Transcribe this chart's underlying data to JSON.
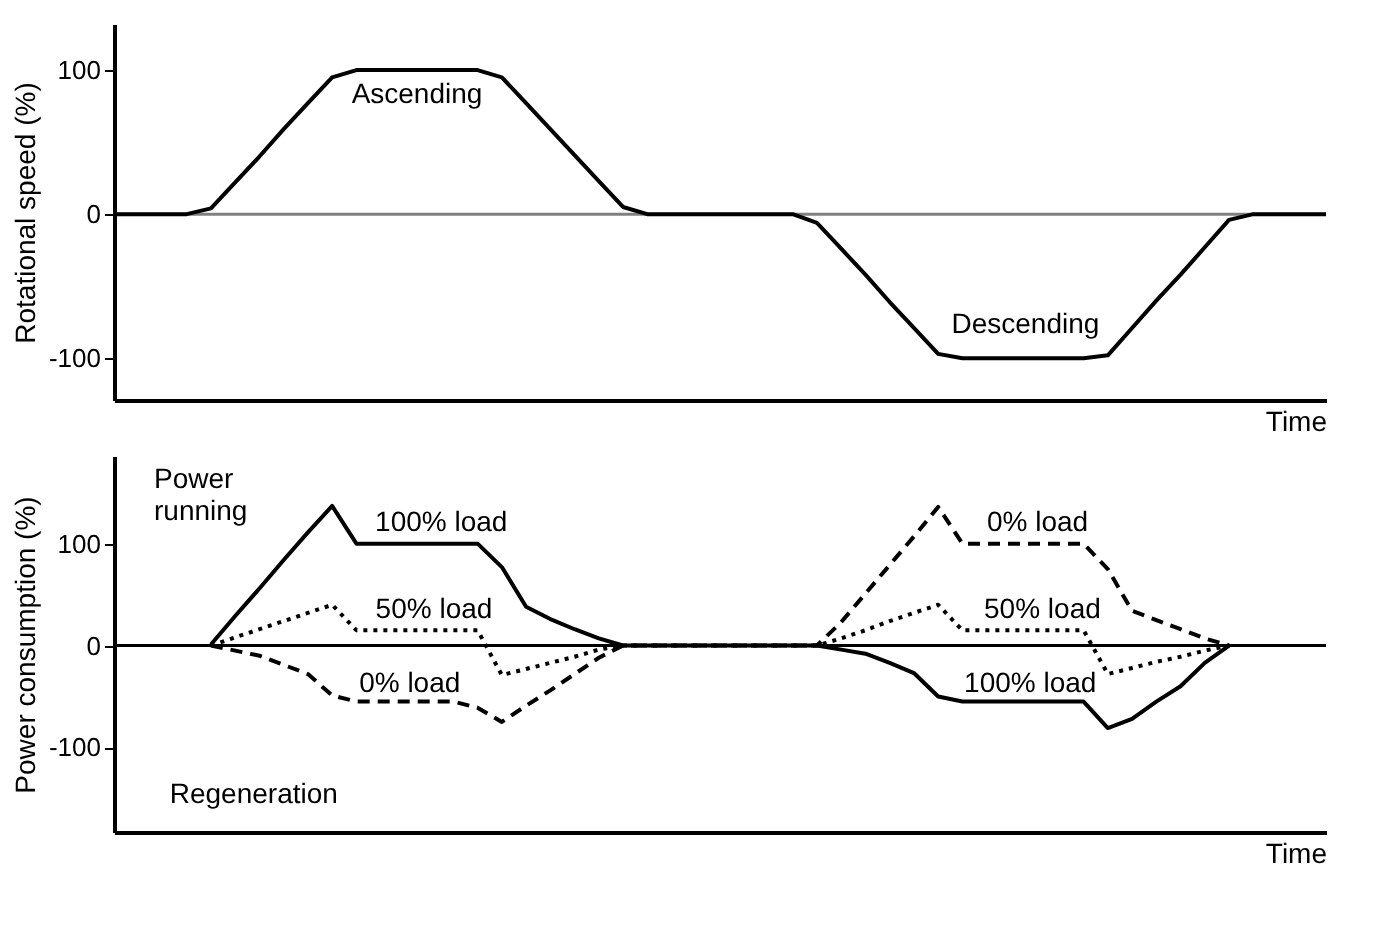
{
  "chart_data": [
    {
      "type": "line",
      "ylabel": "Rotational speed (%)",
      "xlabel": "Time",
      "ylim": [
        -129,
        132
      ],
      "yticks": [
        100,
        0,
        -100
      ],
      "tick_labels": "y",
      "categories": [
        null,
        null,
        null,
        null,
        null,
        null,
        null,
        null,
        null,
        null,
        null,
        null,
        null,
        null,
        null,
        null,
        null,
        null,
        null,
        null,
        null,
        null,
        null,
        null,
        null,
        null,
        null,
        null,
        null,
        null,
        null,
        null,
        null,
        null,
        null,
        null,
        null,
        null,
        null,
        null,
        null,
        null,
        null,
        null,
        null,
        null,
        null,
        null,
        null,
        null,
        null
      ],
      "series": [
        {
          "color": "#000000",
          "line_style": "solid",
          "values": [
            0,
            0,
            0,
            0,
            4,
            22,
            40,
            59,
            77,
            95,
            100,
            100,
            100,
            100,
            100,
            100,
            95,
            77,
            59,
            41,
            23,
            5,
            0,
            0,
            0,
            0,
            0,
            0,
            0,
            -6,
            -24,
            -42,
            -61,
            -79,
            -97,
            -100,
            -100,
            -100,
            -100,
            -100,
            -100,
            -98,
            -79,
            -60,
            -42,
            -23,
            -4,
            0,
            0,
            0,
            0
          ]
        }
      ],
      "ref_lines": [
        {
          "axis": "y",
          "value": 0,
          "color": "#808080"
        }
      ],
      "annotations": [
        "Ascending",
        "Descending"
      ]
    },
    {
      "type": "line",
      "ylabel": "Power consumption (%)",
      "xlabel": "Time",
      "ylim": [
        -183,
        186
      ],
      "yticks": [
        100,
        0,
        -100
      ],
      "tick_labels": "y",
      "categories": [
        null,
        null,
        null,
        null,
        null,
        null,
        null,
        null,
        null,
        null,
        null,
        null,
        null,
        null,
        null,
        null,
        null,
        null,
        null,
        null,
        null,
        null,
        null,
        null,
        null,
        null,
        null,
        null,
        null,
        null,
        null,
        null,
        null,
        null,
        null,
        null,
        null,
        null,
        null,
        null,
        null,
        null,
        null,
        null,
        null,
        null,
        null,
        null,
        null,
        null,
        null
      ],
      "series": [
        {
          "color": "#000000",
          "line_style": "solid",
          "values": [
            null,
            null,
            null,
            null,
            1,
            29,
            56,
            84,
            111,
            137,
            100,
            100,
            100,
            100,
            100,
            100,
            77,
            38,
            26,
            16,
            7,
            0,
            0,
            0,
            0,
            0,
            0,
            0,
            0,
            0,
            -4,
            -8,
            -17,
            -27,
            -50,
            -55,
            -55,
            -55,
            -55,
            -55,
            -55,
            -81,
            -72,
            -55,
            -40,
            -17,
            0,
            null,
            null,
            null,
            null
          ]
        },
        {
          "color": "#000000",
          "line_style": "dotted",
          "values": [
            null,
            null,
            null,
            null,
            0,
            8,
            16,
            24,
            32,
            40,
            15,
            15,
            15,
            15,
            15,
            15,
            -29,
            -23,
            -17,
            -11,
            -4,
            0,
            0,
            0,
            0,
            0,
            0,
            0,
            0,
            0,
            7,
            15,
            24,
            32,
            40,
            15,
            15,
            15,
            15,
            15,
            15,
            -28,
            -22,
            -16,
            -11,
            -5,
            0,
            null,
            null,
            null,
            null
          ]
        },
        {
          "color": "#000000",
          "line_style": "dashed",
          "values": [
            null,
            null,
            null,
            null,
            0,
            -5,
            -10,
            -19,
            -28,
            -49,
            -55,
            -55,
            -55,
            -55,
            -55,
            -61,
            -75,
            -59,
            -44,
            -28,
            -12,
            0,
            0,
            0,
            0,
            0,
            0,
            0,
            0,
            0,
            23,
            51,
            79,
            107,
            136,
            100,
            100,
            100,
            100,
            100,
            100,
            75,
            34,
            25,
            16,
            7,
            0,
            null,
            null,
            null,
            null
          ]
        }
      ],
      "ref_lines": [
        {
          "axis": "y",
          "value": 0,
          "color": "#000000"
        }
      ],
      "annotations": [
        "Power\nrunning",
        "Regeneration",
        "100% load",
        "50% load",
        "0% load",
        "0% load",
        "50% load",
        "100% load"
      ]
    }
  ]
}
